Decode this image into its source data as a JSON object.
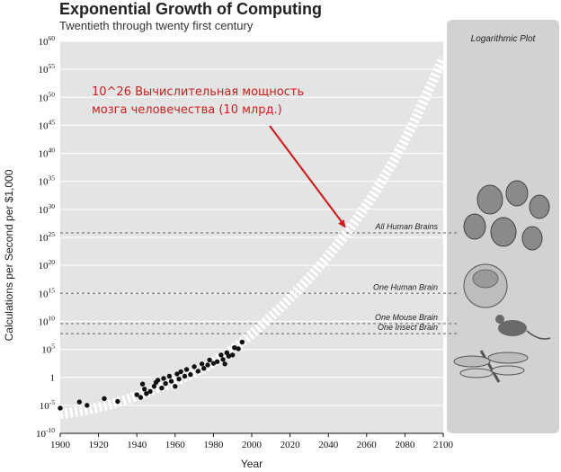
{
  "chart_data": {
    "type": "scatter",
    "title": "Exponential Growth of Computing",
    "subtitle": "Twentieth through twenty first century",
    "xlabel": "Year",
    "ylabel": "Calculations per Second per $1,000",
    "xlim": [
      1900,
      2100
    ],
    "ylim": [
      -10,
      60
    ],
    "y_scale": "log10",
    "x_ticks": [
      "1900",
      "1920",
      "1940",
      "1960",
      "1980",
      "2000",
      "2020",
      "2040",
      "2060",
      "2080",
      "2100"
    ],
    "y_ticks": [
      {
        "base": "10",
        "exp": "60",
        "v": 60
      },
      {
        "base": "10",
        "exp": "55",
        "v": 55
      },
      {
        "base": "10",
        "exp": "50",
        "v": 50
      },
      {
        "base": "10",
        "exp": "45",
        "v": 45
      },
      {
        "base": "10",
        "exp": "40",
        "v": 40
      },
      {
        "base": "10",
        "exp": "35",
        "v": 35
      },
      {
        "base": "10",
        "exp": "30",
        "v": 30
      },
      {
        "base": "10",
        "exp": "25",
        "v": 25
      },
      {
        "base": "10",
        "exp": "20",
        "v": 20
      },
      {
        "base": "10",
        "exp": "15",
        "v": 15
      },
      {
        "base": "10",
        "exp": "10",
        "v": 10
      },
      {
        "base": "10",
        "exp": "5",
        "v": 5
      },
      {
        "base": "1",
        "exp": "",
        "v": 0
      },
      {
        "base": "10",
        "exp": "-5",
        "v": -5
      },
      {
        "base": "10",
        "exp": "-10",
        "v": -10
      }
    ],
    "points": [
      [
        1900,
        -5.5
      ],
      [
        1910,
        -4.4
      ],
      [
        1914,
        -5.0
      ],
      [
        1923,
        -3.8
      ],
      [
        1930,
        -4.3
      ],
      [
        1940,
        -3.1
      ],
      [
        1942,
        -3.6
      ],
      [
        1943,
        -1.2
      ],
      [
        1944,
        -2.1
      ],
      [
        1945,
        -2.9
      ],
      [
        1947,
        -2.5
      ],
      [
        1949,
        -1.6
      ],
      [
        1950,
        -0.9
      ],
      [
        1951,
        -0.5
      ],
      [
        1953,
        -1.9
      ],
      [
        1954,
        -0.2
      ],
      [
        1955,
        -1.1
      ],
      [
        1957,
        0.2
      ],
      [
        1958,
        -0.7
      ],
      [
        1960,
        -1.6
      ],
      [
        1961,
        0.6
      ],
      [
        1962,
        -0.3
      ],
      [
        1963,
        1.0
      ],
      [
        1965,
        0.2
      ],
      [
        1966,
        1.4
      ],
      [
        1968,
        0.5
      ],
      [
        1970,
        1.9
      ],
      [
        1972,
        1.1
      ],
      [
        1974,
        2.4
      ],
      [
        1975,
        1.6
      ],
      [
        1977,
        2.2
      ],
      [
        1978,
        3.1
      ],
      [
        1980,
        2.5
      ],
      [
        1982,
        2.8
      ],
      [
        1984,
        4.0
      ],
      [
        1985,
        3.2
      ],
      [
        1986,
        2.4
      ],
      [
        1987,
        4.4
      ],
      [
        1988,
        3.8
      ],
      [
        1990,
        4.0
      ],
      [
        1991,
        5.3
      ],
      [
        1993,
        5.1
      ],
      [
        1995,
        6.3
      ]
    ],
    "trend": [
      [
        1900,
        -6.6
      ],
      [
        1920,
        -5.5
      ],
      [
        1940,
        -3.4
      ],
      [
        1960,
        -0.8
      ],
      [
        1980,
        2.5
      ],
      [
        2000,
        7.6
      ],
      [
        2020,
        14.0
      ],
      [
        2040,
        21.5
      ],
      [
        2060,
        30.5
      ],
      [
        2080,
        42.0
      ],
      [
        2100,
        57.0
      ]
    ],
    "reference_lines": [
      {
        "label": "All Human Brains",
        "v": 25.8
      },
      {
        "label": "One Human Brain",
        "v": 15.0
      },
      {
        "label": "One Mouse Brain",
        "v": 9.6
      },
      {
        "label": "One Insect Brain",
        "v": 7.8
      }
    ],
    "annotation": {
      "text_line1": "10^26 Вычислительная мощность",
      "text_line2": "мозга человечества (10 млрд.)",
      "target_year": 2052,
      "target_v": 26,
      "color": "#cc1f1f"
    },
    "panel_title": "Logarithmic Plot",
    "colors": {
      "plot_bg": "#e4e4e4",
      "panel_bg": "#d2d2d2",
      "trend": "#ffffff",
      "points": "#111111",
      "reference": "#777777"
    }
  }
}
